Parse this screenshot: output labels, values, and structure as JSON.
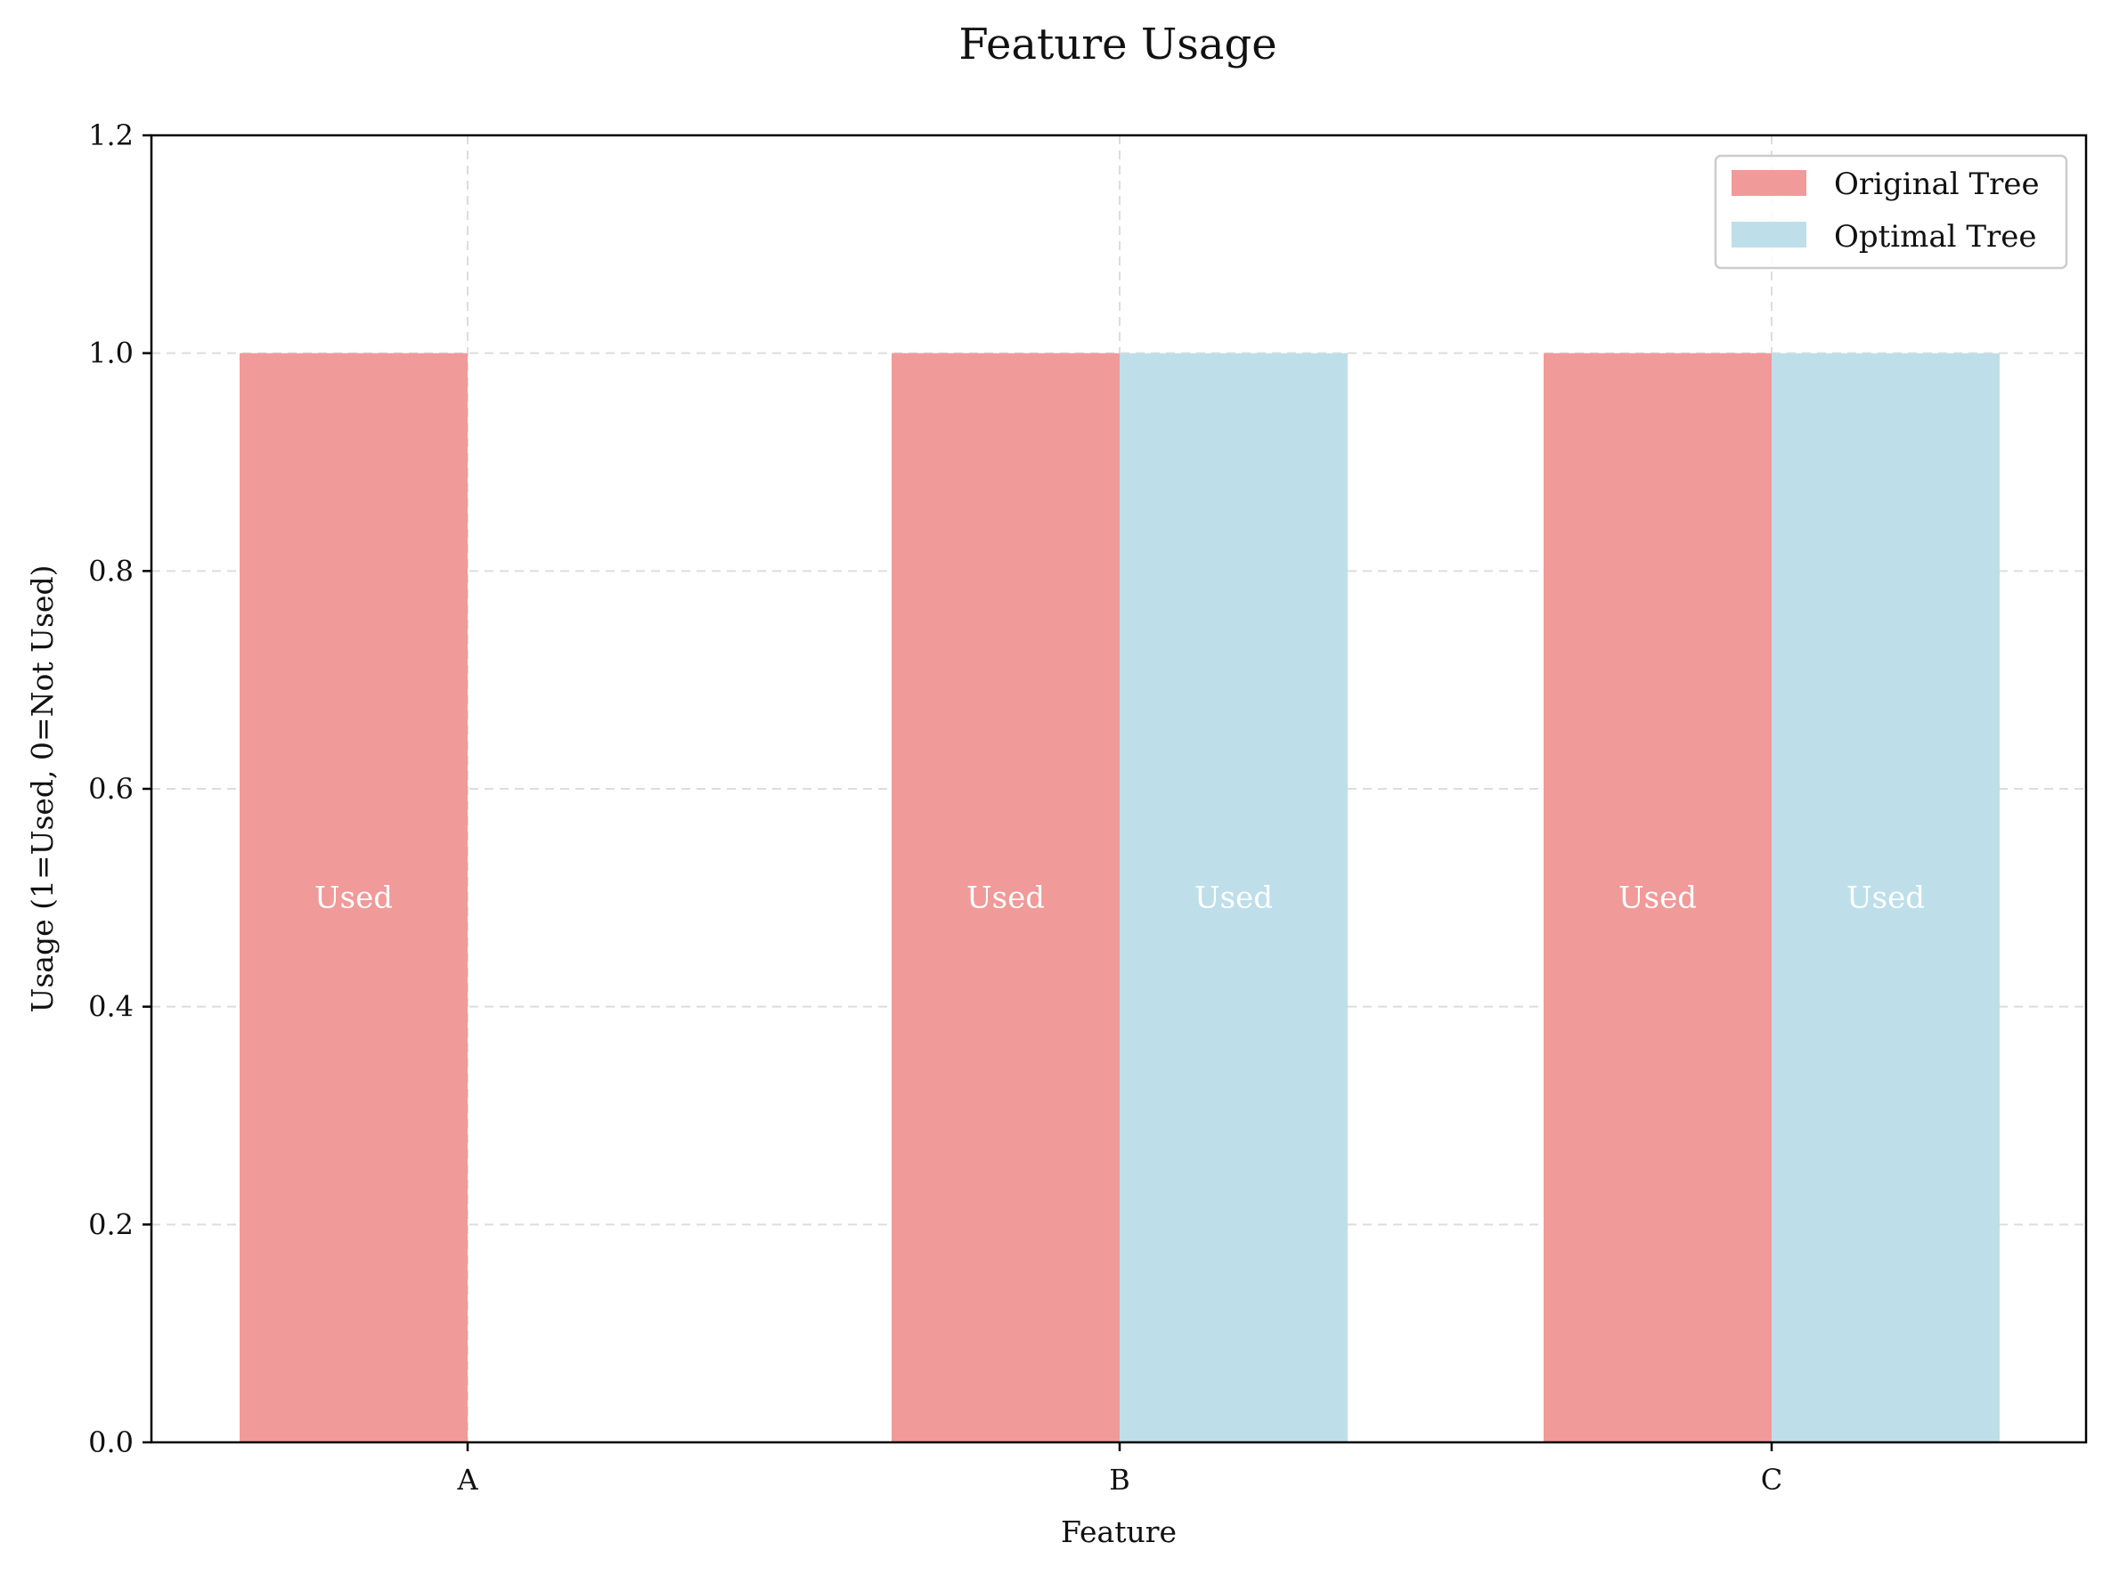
{
  "chart_data": {
    "type": "bar",
    "title": "Feature Usage",
    "xlabel": "Feature",
    "ylabel": "Usage (1=Used, 0=Not Used)",
    "categories": [
      "A",
      "B",
      "C"
    ],
    "ylim": [
      0,
      1.2
    ],
    "yticks": [
      "0.0",
      "0.2",
      "0.4",
      "0.6",
      "0.8",
      "1.0",
      "1.2"
    ],
    "grid": true,
    "legend_position": "top-right",
    "series": [
      {
        "name": "Original Tree",
        "color": "#f19a9a",
        "values": [
          1,
          1,
          1
        ],
        "labels": [
          "Used",
          "Used",
          "Used"
        ]
      },
      {
        "name": "Optimal Tree",
        "color": "#bedfea",
        "values": [
          0,
          1,
          1
        ],
        "labels": [
          "",
          "Used",
          "Used"
        ]
      }
    ]
  }
}
